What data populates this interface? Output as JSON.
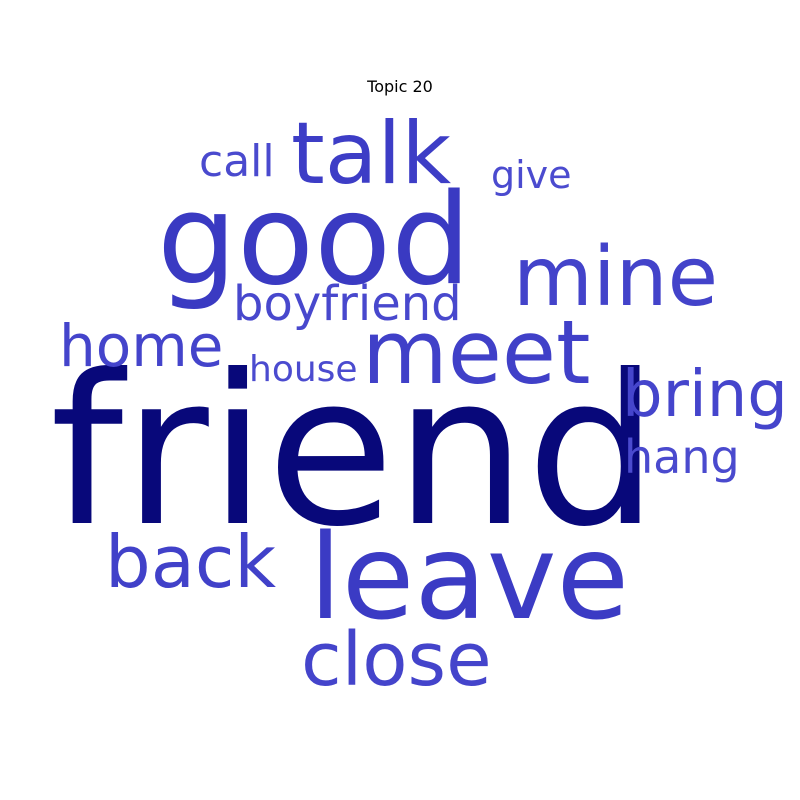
{
  "chart_data": {
    "type": "wordcloud",
    "title": "Topic 20",
    "words": [
      {
        "text": "friend",
        "weight": 1.0,
        "color": "#08087a"
      },
      {
        "text": "good",
        "weight": 0.62,
        "color": "#3a3ac2"
      },
      {
        "text": "leave",
        "weight": 0.58,
        "color": "#3b3bc4"
      },
      {
        "text": "meet",
        "weight": 0.44,
        "color": "#4040c8"
      },
      {
        "text": "talk",
        "weight": 0.41,
        "color": "#3d3dc6"
      },
      {
        "text": "mine",
        "weight": 0.4,
        "color": "#4343ca"
      },
      {
        "text": "close",
        "weight": 0.37,
        "color": "#4444cb"
      },
      {
        "text": "back",
        "weight": 0.36,
        "color": "#4141c9"
      },
      {
        "text": "bring",
        "weight": 0.33,
        "color": "#4545cc"
      },
      {
        "text": "home",
        "weight": 0.3,
        "color": "#4444cb"
      },
      {
        "text": "boyfriend",
        "weight": 0.25,
        "color": "#4848cd"
      },
      {
        "text": "hang",
        "weight": 0.23,
        "color": "#4a4ace"
      },
      {
        "text": "call",
        "weight": 0.22,
        "color": "#4a4ace"
      },
      {
        "text": "give",
        "weight": 0.2,
        "color": "#4b4bcf"
      },
      {
        "text": "house",
        "weight": 0.19,
        "color": "#4b4bcf"
      }
    ]
  }
}
